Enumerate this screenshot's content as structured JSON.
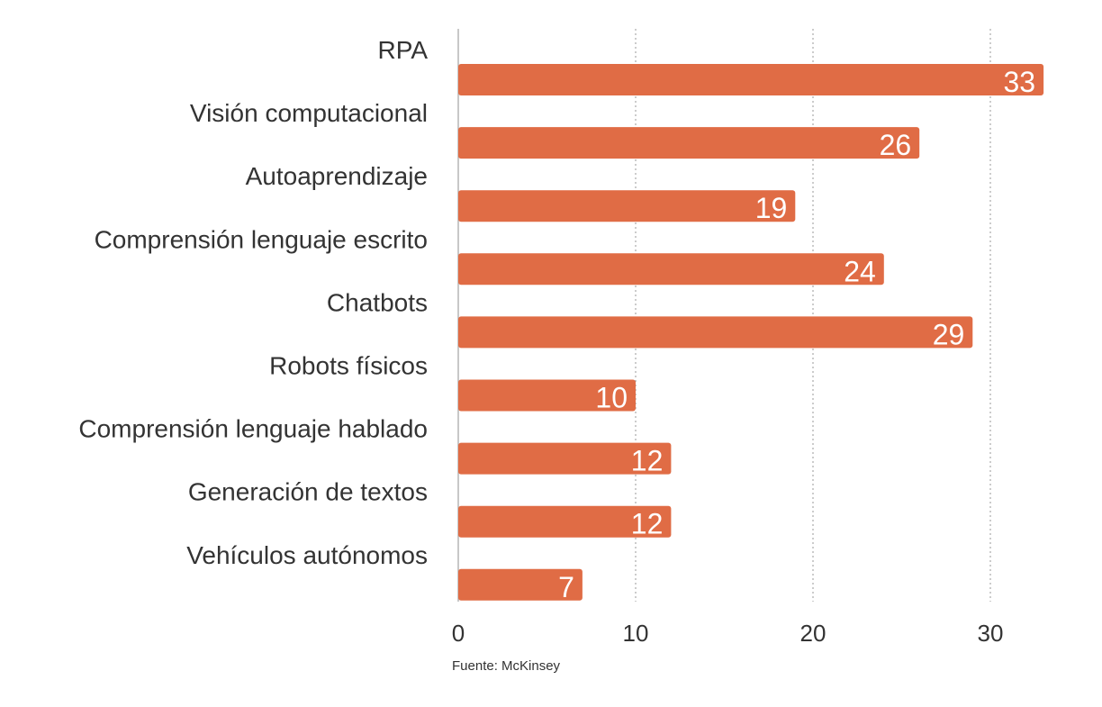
{
  "chart_data": {
    "type": "bar",
    "orientation": "horizontal",
    "categories": [
      "RPA",
      "Visión computacional",
      "Autoaprendizaje",
      "Comprensión lenguaje escrito",
      "Chatbots",
      "Robots físicos",
      "Comprensión lenguaje hablado",
      "Generación de textos",
      "Vehículos autónomos"
    ],
    "values": [
      33,
      26,
      19,
      24,
      29,
      10,
      12,
      12,
      7
    ],
    "data_labels": [
      "33",
      "26",
      "19",
      "24",
      "29",
      "10",
      "12",
      "12",
      "7"
    ],
    "xticks": [
      "0",
      "10",
      "20",
      "30"
    ],
    "xlim": [
      0,
      33
    ],
    "grid": true,
    "title": "",
    "xlabel": "",
    "ylabel": "",
    "bar_color": "#e06c45",
    "source": "Fuente: McKinsey"
  }
}
